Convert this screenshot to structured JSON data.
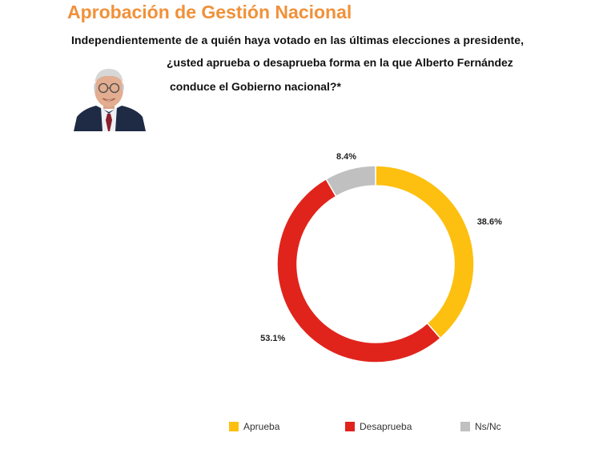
{
  "header": {
    "title": "Aprobación de Gestión Nacional",
    "question_line1": "Independientemente de a quién haya votado en las últimas elecciones a presidente,",
    "question_line2": "¿usted aprueba o desaprueba  forma en la que Alberto Fernández",
    "question_line3": "conduce el Gobierno nacional?*"
  },
  "colors": {
    "title": "#F0913A",
    "aprueba": "#FDC010",
    "desaprueba": "#E0241C",
    "nsnc": "#C0C0C0"
  },
  "chart_data": {
    "type": "pie",
    "style": "donut",
    "title": "",
    "categories": [
      "Aprueba",
      "Desaprueba",
      "Ns/Nc"
    ],
    "values": [
      38.6,
      53.1,
      8.4
    ],
    "labels": [
      "38.6%",
      "53.1%",
      "8.4%"
    ],
    "legend_position": "bottom"
  }
}
